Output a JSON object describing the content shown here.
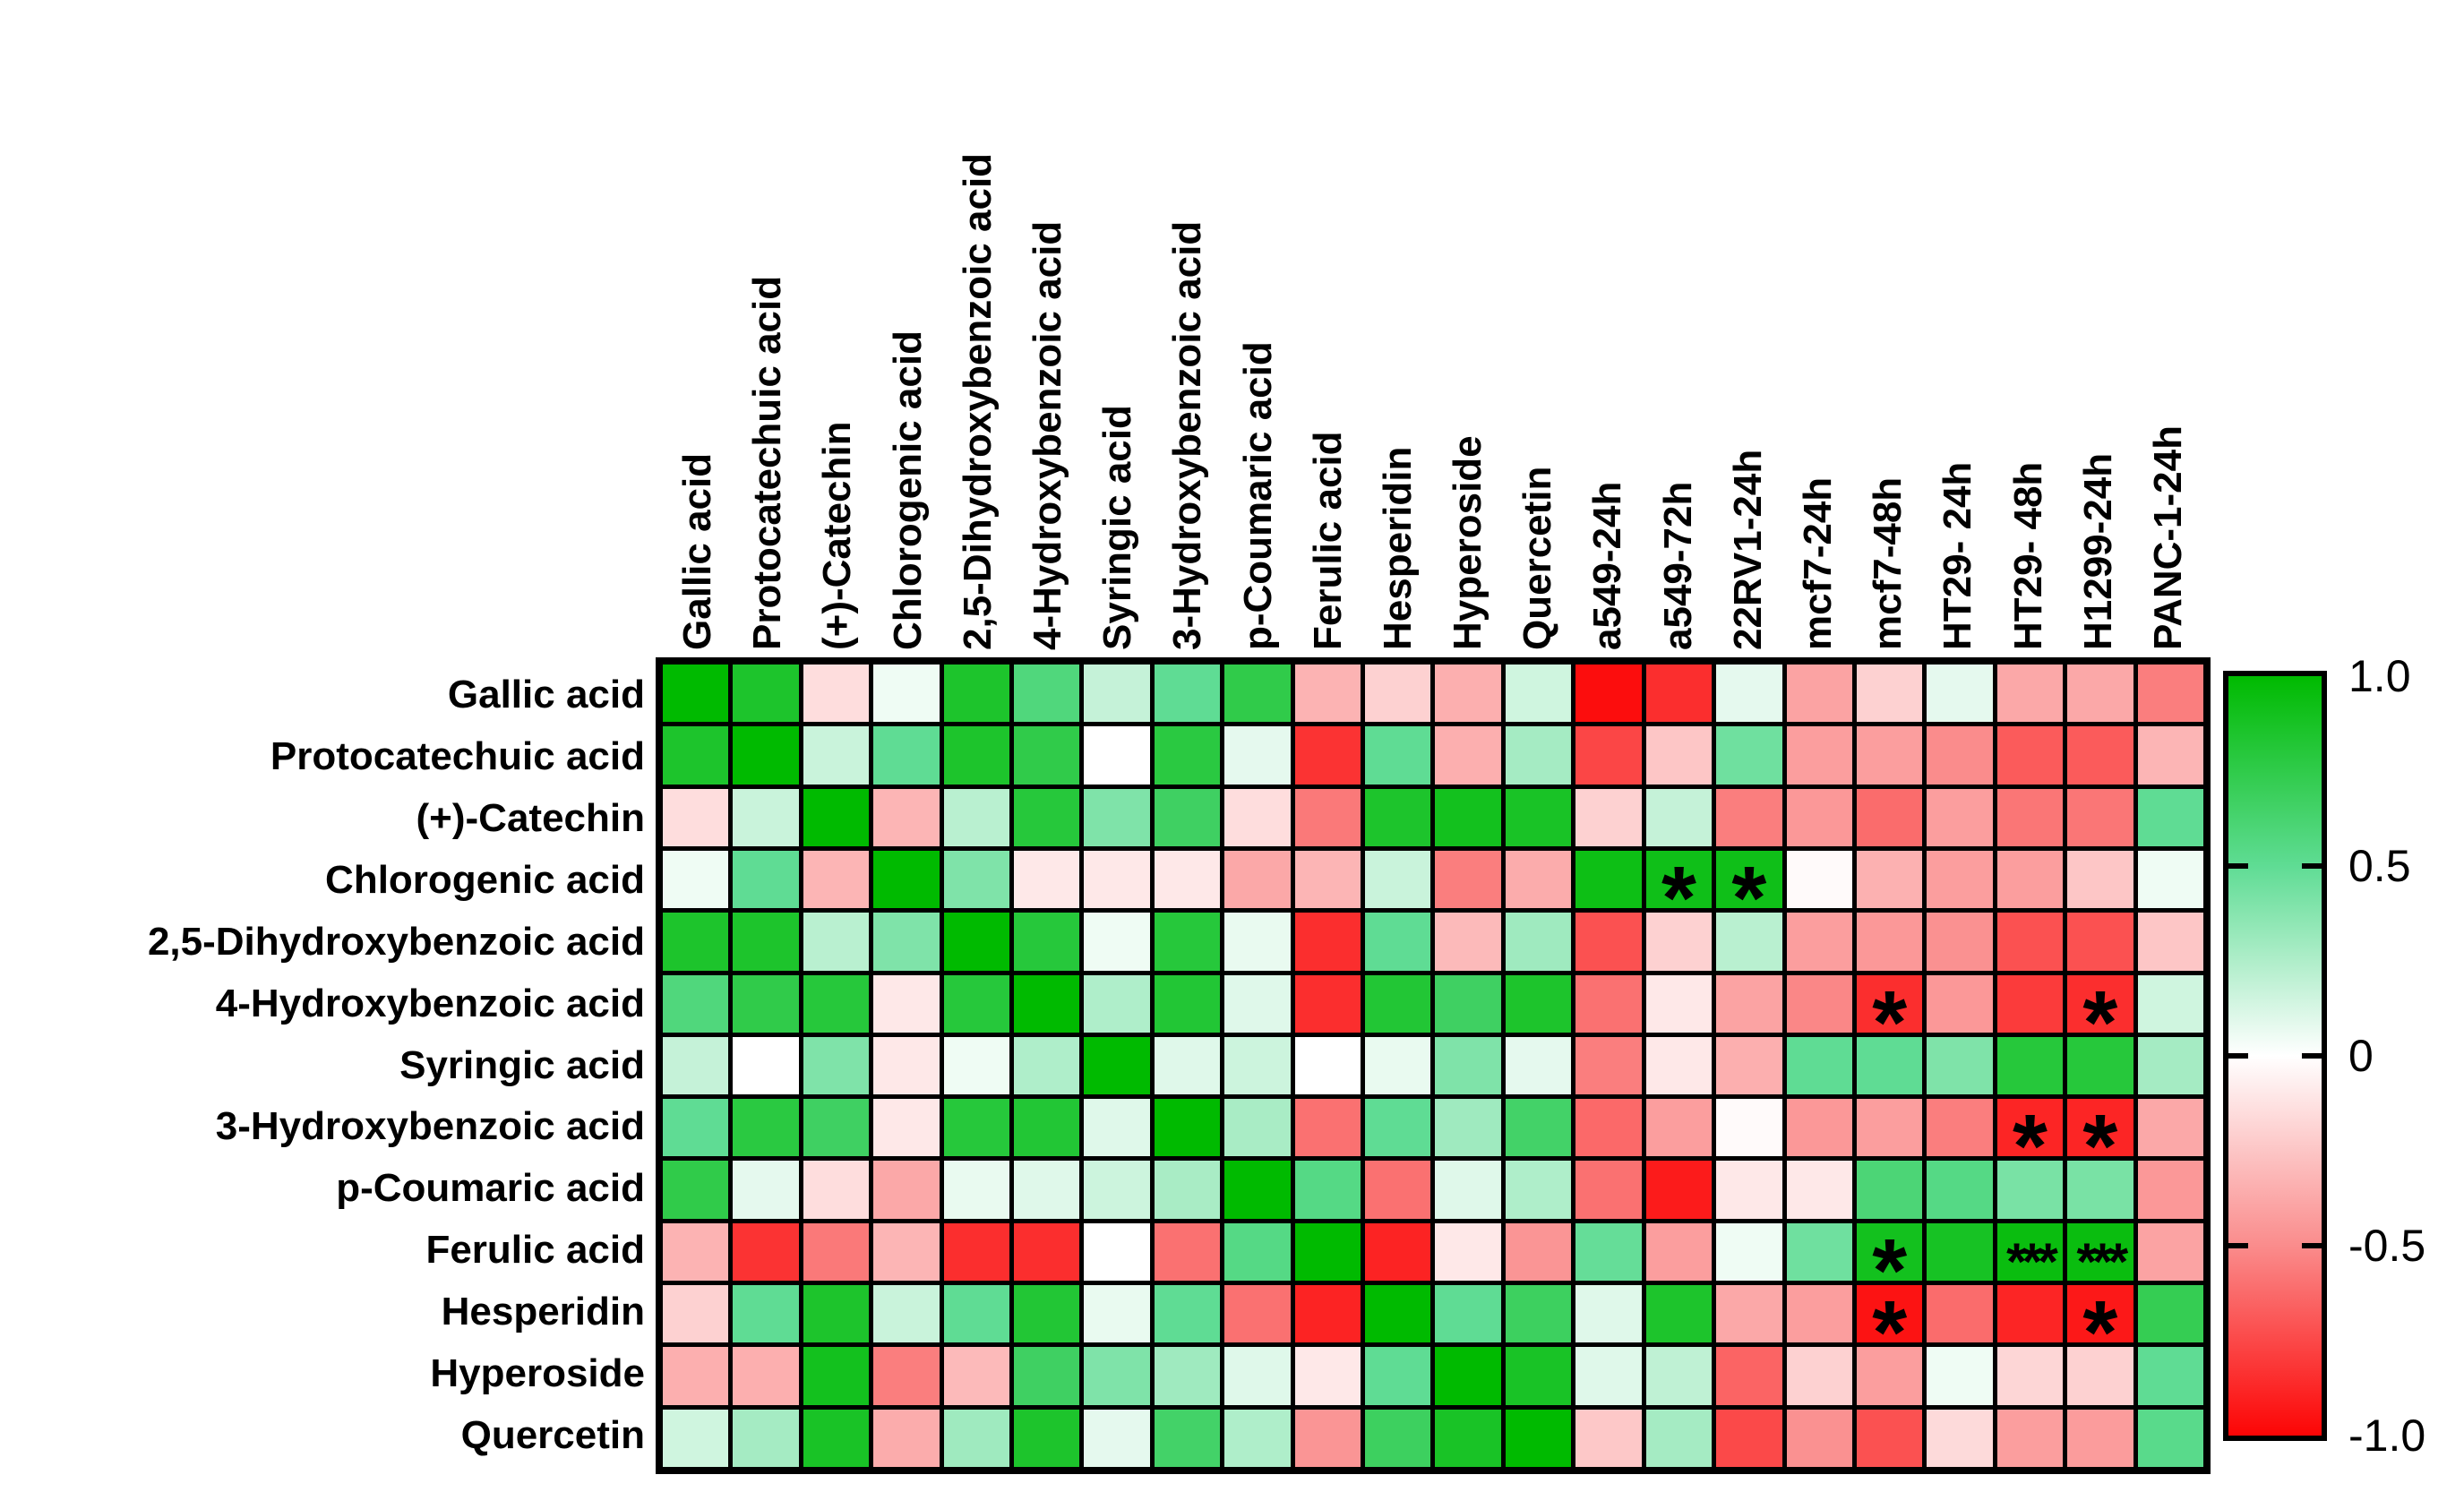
{
  "chart_data": {
    "type": "heatmap",
    "title": "",
    "rows": [
      "Gallic acid",
      "Protocatechuic acid",
      "(+)-Catechin",
      "Chlorogenic acid",
      "2,5-Dihydroxybenzoic acid",
      "4-Hydroxybenzoic acid",
      "Syringic acid",
      "3-Hydroxybenzoic acid",
      "p-Coumaric acid",
      "Ferulic acid",
      "Hesperidin",
      "Hyperoside",
      "Quercetin"
    ],
    "columns": [
      "Gallic acid",
      "Protocatechuic acid",
      "(+)-Catechin",
      "Chlorogenic acid",
      "2,5-Dihydroxybenzoic acid",
      "4-Hydroxybenzoic acid",
      "Syringic acid",
      "3-Hydroxybenzoic acid",
      "p-Coumaric acid",
      "Ferulic acid",
      "Hesperidin",
      "Hyperoside",
      "Quercetin",
      "a549-24h",
      "a549-72h",
      "22RV1-24h",
      "mcf7-24h",
      "mcf7-48h",
      "HT29- 24h",
      "HT29- 48h",
      "H1299-24h",
      "PANC-1-24h"
    ],
    "values": [
      [
        1.0,
        0.85,
        -0.15,
        0.05,
        0.85,
        0.58,
        0.18,
        0.5,
        0.75,
        -0.33,
        -0.2,
        -0.35,
        0.15,
        -0.97,
        -0.85,
        0.08,
        -0.4,
        -0.2,
        0.08,
        -0.38,
        -0.38,
        -0.55
      ],
      [
        0.85,
        1.0,
        0.17,
        0.5,
        0.85,
        0.75,
        0.0,
        0.78,
        0.08,
        -0.83,
        0.5,
        -0.35,
        0.28,
        -0.76,
        -0.25,
        0.45,
        -0.42,
        -0.42,
        -0.5,
        -0.68,
        -0.68,
        -0.32
      ],
      [
        -0.15,
        0.17,
        1.0,
        -0.32,
        0.22,
        0.8,
        0.4,
        0.67,
        -0.15,
        -0.57,
        0.85,
        0.9,
        0.87,
        -0.2,
        0.18,
        -0.55,
        -0.45,
        -0.62,
        -0.42,
        -0.58,
        -0.58,
        0.5
      ],
      [
        0.05,
        0.5,
        -0.32,
        1.0,
        0.4,
        -0.1,
        -0.1,
        -0.1,
        -0.38,
        -0.32,
        0.17,
        -0.55,
        -0.36,
        0.93,
        0.92,
        0.92,
        -0.02,
        -0.34,
        -0.42,
        -0.42,
        -0.25,
        0.05
      ],
      [
        0.85,
        0.85,
        0.22,
        0.4,
        1.0,
        0.8,
        0.05,
        0.8,
        0.07,
        -0.85,
        0.5,
        -0.3,
        0.3,
        -0.72,
        -0.2,
        0.22,
        -0.42,
        -0.45,
        -0.48,
        -0.72,
        -0.72,
        -0.25
      ],
      [
        0.58,
        0.75,
        0.8,
        -0.1,
        0.8,
        1.0,
        0.25,
        0.82,
        0.1,
        -0.85,
        0.82,
        0.67,
        0.85,
        -0.6,
        -0.1,
        -0.4,
        -0.52,
        -0.85,
        -0.45,
        -0.8,
        -0.85,
        0.15
      ],
      [
        0.18,
        0.0,
        0.4,
        -0.1,
        0.05,
        0.25,
        1.0,
        0.1,
        0.16,
        0.0,
        0.07,
        0.4,
        0.08,
        -0.55,
        -0.1,
        -0.35,
        0.5,
        0.5,
        0.4,
        0.8,
        0.8,
        0.28
      ],
      [
        0.5,
        0.78,
        0.67,
        -0.1,
        0.8,
        0.82,
        0.1,
        1.0,
        0.27,
        -0.6,
        0.5,
        0.3,
        0.65,
        -0.63,
        -0.42,
        -0.02,
        -0.45,
        -0.42,
        -0.55,
        -0.88,
        -0.88,
        -0.38
      ],
      [
        0.75,
        0.08,
        -0.15,
        -0.38,
        0.07,
        0.1,
        0.16,
        0.27,
        1.0,
        0.55,
        -0.6,
        0.1,
        0.25,
        -0.6,
        -0.92,
        -0.1,
        -0.1,
        0.6,
        0.55,
        0.42,
        0.42,
        -0.45
      ],
      [
        -0.33,
        -0.83,
        -0.57,
        -0.32,
        -0.85,
        -0.85,
        0.0,
        -0.6,
        0.55,
        1.0,
        -0.89,
        -0.1,
        -0.46,
        0.48,
        -0.42,
        0.05,
        0.45,
        0.9,
        0.88,
        0.95,
        0.95,
        -0.4
      ],
      [
        -0.2,
        0.5,
        0.85,
        0.17,
        0.5,
        0.82,
        0.07,
        0.5,
        -0.6,
        -0.89,
        1.0,
        0.5,
        0.68,
        0.1,
        0.85,
        -0.38,
        -0.42,
        -0.95,
        -0.62,
        -0.88,
        -0.93,
        0.72
      ],
      [
        -0.35,
        -0.35,
        0.9,
        -0.55,
        -0.3,
        0.67,
        0.4,
        0.3,
        0.1,
        -0.1,
        0.5,
        1.0,
        0.87,
        0.1,
        0.2,
        -0.65,
        -0.2,
        -0.42,
        0.05,
        -0.18,
        -0.2,
        0.5
      ],
      [
        0.15,
        0.28,
        0.87,
        -0.36,
        0.3,
        0.85,
        0.08,
        0.65,
        0.25,
        -0.46,
        0.68,
        0.87,
        1.0,
        -0.24,
        0.28,
        -0.75,
        -0.48,
        -0.72,
        -0.16,
        -0.42,
        -0.43,
        0.53
      ]
    ],
    "significance": [
      {
        "row": 3,
        "col": 14,
        "row_label": "Chlorogenic acid",
        "col_label": "a549-72h",
        "label": "*"
      },
      {
        "row": 3,
        "col": 15,
        "row_label": "Chlorogenic acid",
        "col_label": "22RV1-24h",
        "label": "*"
      },
      {
        "row": 5,
        "col": 17,
        "row_label": "4-Hydroxybenzoic acid",
        "col_label": "mcf7-48h",
        "label": "*"
      },
      {
        "row": 5,
        "col": 20,
        "row_label": "4-Hydroxybenzoic acid",
        "col_label": "H1299-24h",
        "label": "*"
      },
      {
        "row": 7,
        "col": 19,
        "row_label": "3-Hydroxybenzoic acid",
        "col_label": "HT29- 48h",
        "label": "*"
      },
      {
        "row": 7,
        "col": 20,
        "row_label": "3-Hydroxybenzoic acid",
        "col_label": "H1299-24h",
        "label": "*"
      },
      {
        "row": 9,
        "col": 17,
        "row_label": "Ferulic acid",
        "col_label": "mcf7-48h",
        "label": "*"
      },
      {
        "row": 9,
        "col": 19,
        "row_label": "Ferulic acid",
        "col_label": "HT29- 48h",
        "label": "***"
      },
      {
        "row": 9,
        "col": 20,
        "row_label": "Ferulic acid",
        "col_label": "H1299-24h",
        "label": "***"
      },
      {
        "row": 10,
        "col": 17,
        "row_label": "Hesperidin",
        "col_label": "mcf7-48h",
        "label": "*"
      },
      {
        "row": 10,
        "col": 20,
        "row_label": "Hesperidin",
        "col_label": "H1299-24h",
        "label": "*"
      }
    ],
    "colorbar": {
      "tick_labels": [
        "1.0",
        "0.5",
        "0",
        "-0.5",
        "-1.0"
      ],
      "max": 1.0,
      "min": -1.0,
      "position": "right"
    },
    "colorscale": {
      "stops": [
        [
          -1.0,
          "#FC0505"
        ],
        [
          -0.5,
          "#FA8C8C"
        ],
        [
          0.0,
          "#FFFFFF"
        ],
        [
          0.5,
          "#5FDC94"
        ],
        [
          1.0,
          "#00BA00"
        ]
      ]
    },
    "ylim": [
      -1.0,
      1.0
    ],
    "grid_lines": "black",
    "xlabel": "",
    "ylabel": ""
  }
}
